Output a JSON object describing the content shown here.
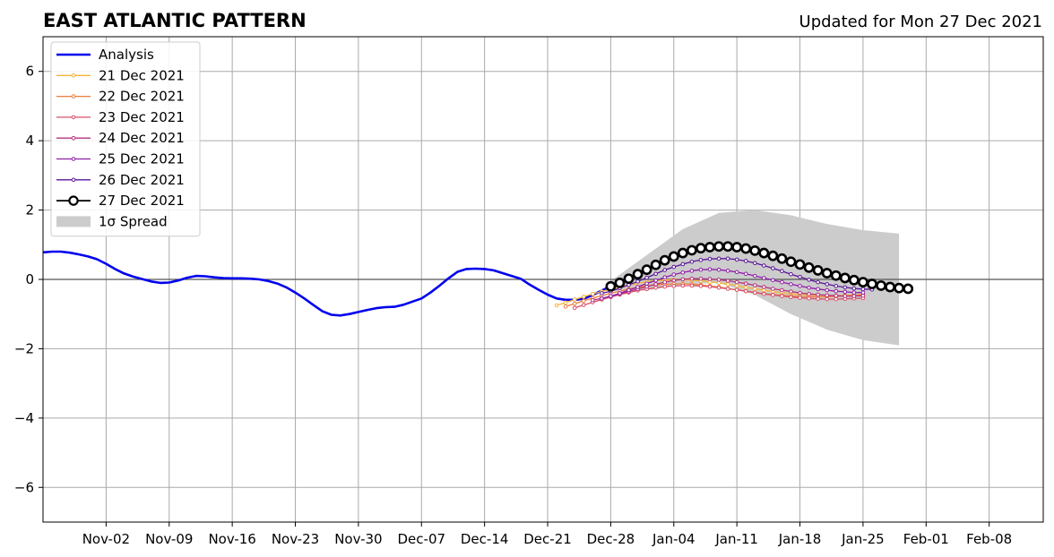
{
  "chart_data": {
    "type": "line",
    "title": "EAST ATLANTIC PATTERN",
    "subtitle": "Updated for Mon 27 Dec 2021",
    "xlabel": "",
    "ylabel": "",
    "x_axis": {
      "type": "date",
      "range": [
        "2021-10-26",
        "2022-02-14"
      ],
      "ticks": [
        {
          "date": "2021-11-02",
          "label": "Nov-02"
        },
        {
          "date": "2021-11-09",
          "label": "Nov-09"
        },
        {
          "date": "2021-11-16",
          "label": "Nov-16"
        },
        {
          "date": "2021-11-23",
          "label": "Nov-23"
        },
        {
          "date": "2021-11-30",
          "label": "Nov-30"
        },
        {
          "date": "2021-12-07",
          "label": "Dec-07"
        },
        {
          "date": "2021-12-14",
          "label": "Dec-14"
        },
        {
          "date": "2021-12-21",
          "label": "Dec-21"
        },
        {
          "date": "2021-12-28",
          "label": "Dec-28"
        },
        {
          "date": "2022-01-04",
          "label": "Jan-04"
        },
        {
          "date": "2022-01-11",
          "label": "Jan-11"
        },
        {
          "date": "2022-01-18",
          "label": "Jan-18"
        },
        {
          "date": "2022-01-25",
          "label": "Jan-25"
        },
        {
          "date": "2022-02-01",
          "label": "Feb-01"
        },
        {
          "date": "2022-02-08",
          "label": "Feb-08"
        }
      ]
    },
    "y_axis": {
      "range": [
        -7,
        7
      ],
      "ticks": [
        {
          "value": -6,
          "label": "−6"
        },
        {
          "value": -4,
          "label": "−4"
        },
        {
          "value": -2,
          "label": "−2"
        },
        {
          "value": 0,
          "label": "0"
        },
        {
          "value": 2,
          "label": "2"
        },
        {
          "value": 4,
          "label": "4"
        },
        {
          "value": 6,
          "label": "6"
        }
      ]
    },
    "grid": true,
    "zero_line": true,
    "legend_position": "top-left",
    "analysis": {
      "name": "Analysis",
      "color": "#0000ee",
      "points": [
        [
          "2021-10-26",
          0.78
        ],
        [
          "2021-10-27",
          0.8
        ],
        [
          "2021-10-28",
          0.8
        ],
        [
          "2021-10-29",
          0.77
        ],
        [
          "2021-10-30",
          0.72
        ],
        [
          "2021-10-31",
          0.66
        ],
        [
          "2021-11-01",
          0.58
        ],
        [
          "2021-11-02",
          0.45
        ],
        [
          "2021-11-03",
          0.3
        ],
        [
          "2021-11-04",
          0.17
        ],
        [
          "2021-11-05",
          0.08
        ],
        [
          "2021-11-06",
          0.01
        ],
        [
          "2021-11-07",
          -0.06
        ],
        [
          "2021-11-08",
          -0.1
        ],
        [
          "2021-11-09",
          -0.09
        ],
        [
          "2021-11-10",
          -0.03
        ],
        [
          "2021-11-11",
          0.05
        ],
        [
          "2021-11-12",
          0.1
        ],
        [
          "2021-11-13",
          0.09
        ],
        [
          "2021-11-14",
          0.06
        ],
        [
          "2021-11-15",
          0.04
        ],
        [
          "2021-11-16",
          0.03
        ],
        [
          "2021-11-17",
          0.03
        ],
        [
          "2021-11-18",
          0.02
        ],
        [
          "2021-11-19",
          0.0
        ],
        [
          "2021-11-20",
          -0.05
        ],
        [
          "2021-11-21",
          -0.12
        ],
        [
          "2021-11-22",
          -0.23
        ],
        [
          "2021-11-23",
          -0.38
        ],
        [
          "2021-11-24",
          -0.55
        ],
        [
          "2021-11-25",
          -0.74
        ],
        [
          "2021-11-26",
          -0.92
        ],
        [
          "2021-11-27",
          -1.02
        ],
        [
          "2021-11-28",
          -1.04
        ],
        [
          "2021-11-29",
          -1.0
        ],
        [
          "2021-11-30",
          -0.94
        ],
        [
          "2021-12-01",
          -0.88
        ],
        [
          "2021-12-02",
          -0.83
        ],
        [
          "2021-12-03",
          -0.8
        ],
        [
          "2021-12-04",
          -0.79
        ],
        [
          "2021-12-05",
          -0.73
        ],
        [
          "2021-12-06",
          -0.64
        ],
        [
          "2021-12-07",
          -0.55
        ],
        [
          "2021-12-08",
          -0.38
        ],
        [
          "2021-12-09",
          -0.18
        ],
        [
          "2021-12-10",
          0.03
        ],
        [
          "2021-12-11",
          0.22
        ],
        [
          "2021-12-12",
          0.3
        ],
        [
          "2021-12-13",
          0.31
        ],
        [
          "2021-12-14",
          0.3
        ],
        [
          "2021-12-15",
          0.26
        ],
        [
          "2021-12-16",
          0.18
        ],
        [
          "2021-12-17",
          0.1
        ],
        [
          "2021-12-18",
          0.02
        ],
        [
          "2021-12-19",
          -0.15
        ],
        [
          "2021-12-20",
          -0.3
        ],
        [
          "2021-12-21",
          -0.44
        ],
        [
          "2021-12-22",
          -0.55
        ],
        [
          "2021-12-23",
          -0.59
        ],
        [
          "2021-12-24",
          -0.59
        ],
        [
          "2021-12-25",
          -0.56
        ],
        [
          "2021-12-26",
          -0.45
        ],
        [
          "2021-12-27",
          -0.32
        ],
        [
          "2021-12-28",
          -0.2
        ],
        [
          "2021-12-29",
          -0.1
        ]
      ]
    },
    "forecasts": [
      {
        "name": "21 Dec 2021",
        "color": "#f5b43a",
        "start": "2021-12-22",
        "values": [
          -0.75,
          -0.67,
          -0.58,
          -0.5,
          -0.42,
          -0.35,
          -0.28,
          -0.22,
          -0.16,
          -0.11,
          -0.07,
          -0.04,
          -0.02,
          -0.01,
          -0.01,
          -0.02,
          -0.04,
          -0.07,
          -0.1,
          -0.14,
          -0.18,
          -0.23,
          -0.27,
          -0.31,
          -0.35,
          -0.38,
          -0.41,
          -0.43,
          -0.45,
          -0.46,
          -0.47,
          -0.47,
          -0.46,
          -0.45,
          -0.44
        ]
      },
      {
        "name": "22 Dec 2021",
        "color": "#ee7c3a",
        "start": "2021-12-23",
        "values": [
          -0.78,
          -0.7,
          -0.62,
          -0.54,
          -0.47,
          -0.4,
          -0.34,
          -0.28,
          -0.23,
          -0.19,
          -0.16,
          -0.14,
          -0.13,
          -0.13,
          -0.14,
          -0.16,
          -0.19,
          -0.22,
          -0.26,
          -0.3,
          -0.34,
          -0.38,
          -0.41,
          -0.44,
          -0.46,
          -0.48,
          -0.49,
          -0.5,
          -0.5,
          -0.5,
          -0.49,
          -0.48,
          -0.46,
          -0.44
        ]
      },
      {
        "name": "23 Dec 2021",
        "color": "#d9506a",
        "start": "2021-12-24",
        "values": [
          -0.82,
          -0.74,
          -0.66,
          -0.58,
          -0.51,
          -0.44,
          -0.38,
          -0.32,
          -0.28,
          -0.24,
          -0.21,
          -0.19,
          -0.18,
          -0.18,
          -0.19,
          -0.21,
          -0.24,
          -0.27,
          -0.3,
          -0.34,
          -0.38,
          -0.42,
          -0.45,
          -0.48,
          -0.51,
          -0.53,
          -0.55,
          -0.56,
          -0.57,
          -0.57,
          -0.56,
          -0.55,
          -0.54
        ]
      },
      {
        "name": "24 Dec 2021",
        "color": "#b5307f",
        "start": "2021-12-26",
        "values": [
          -0.6,
          -0.55,
          -0.49,
          -0.42,
          -0.35,
          -0.28,
          -0.21,
          -0.14,
          -0.08,
          -0.03,
          0.0,
          0.02,
          0.02,
          0.01,
          -0.01,
          -0.04,
          -0.08,
          -0.12,
          -0.17,
          -0.22,
          -0.27,
          -0.31,
          -0.35,
          -0.39,
          -0.42,
          -0.44,
          -0.46,
          -0.47,
          -0.48,
          -0.48,
          -0.47
        ]
      },
      {
        "name": "25 Dec 2021",
        "color": "#8e1fa8",
        "start": "2021-12-27",
        "values": [
          -0.55,
          -0.48,
          -0.4,
          -0.31,
          -0.22,
          -0.12,
          -0.03,
          0.06,
          0.14,
          0.2,
          0.25,
          0.28,
          0.29,
          0.28,
          0.25,
          0.21,
          0.16,
          0.1,
          0.04,
          -0.02,
          -0.08,
          -0.14,
          -0.19,
          -0.24,
          -0.28,
          -0.31,
          -0.34,
          -0.36,
          -0.38,
          -0.38
        ]
      },
      {
        "name": "26 Dec 2021",
        "color": "#5a1599",
        "start": "2021-12-27",
        "values": [
          -0.4,
          -0.34,
          -0.25,
          -0.16,
          -0.06,
          0.05,
          0.16,
          0.27,
          0.36,
          0.44,
          0.51,
          0.56,
          0.59,
          0.6,
          0.6,
          0.57,
          0.53,
          0.47,
          0.4,
          0.32,
          0.24,
          0.15,
          0.07,
          -0.01,
          -0.08,
          -0.14,
          -0.19,
          -0.23,
          -0.26,
          -0.28,
          -0.29
        ]
      },
      {
        "name": "27 Dec 2021",
        "color": "#000000",
        "start": "2021-12-28",
        "values": [
          -0.2,
          -0.1,
          0.02,
          0.15,
          0.28,
          0.42,
          0.55,
          0.66,
          0.76,
          0.84,
          0.9,
          0.93,
          0.95,
          0.95,
          0.93,
          0.89,
          0.83,
          0.76,
          0.68,
          0.6,
          0.51,
          0.43,
          0.34,
          0.26,
          0.18,
          0.11,
          0.04,
          -0.02,
          -0.08,
          -0.13,
          -0.18,
          -0.22,
          -0.25,
          -0.27
        ]
      }
    ],
    "spread": {
      "name": "1σ Spread",
      "color": "#cccccc",
      "dates": [
        "2021-12-28",
        "2022-01-01",
        "2022-01-05",
        "2022-01-09",
        "2022-01-13",
        "2022-01-17",
        "2022-01-21",
        "2022-01-25",
        "2022-01-29"
      ],
      "upper": [
        -0.05,
        0.7,
        1.45,
        1.92,
        2.0,
        1.85,
        1.6,
        1.42,
        1.32
      ],
      "lower": [
        -0.35,
        -0.32,
        -0.15,
        -0.1,
        -0.45,
        -1.0,
        -1.45,
        -1.75,
        -1.9
      ]
    }
  }
}
